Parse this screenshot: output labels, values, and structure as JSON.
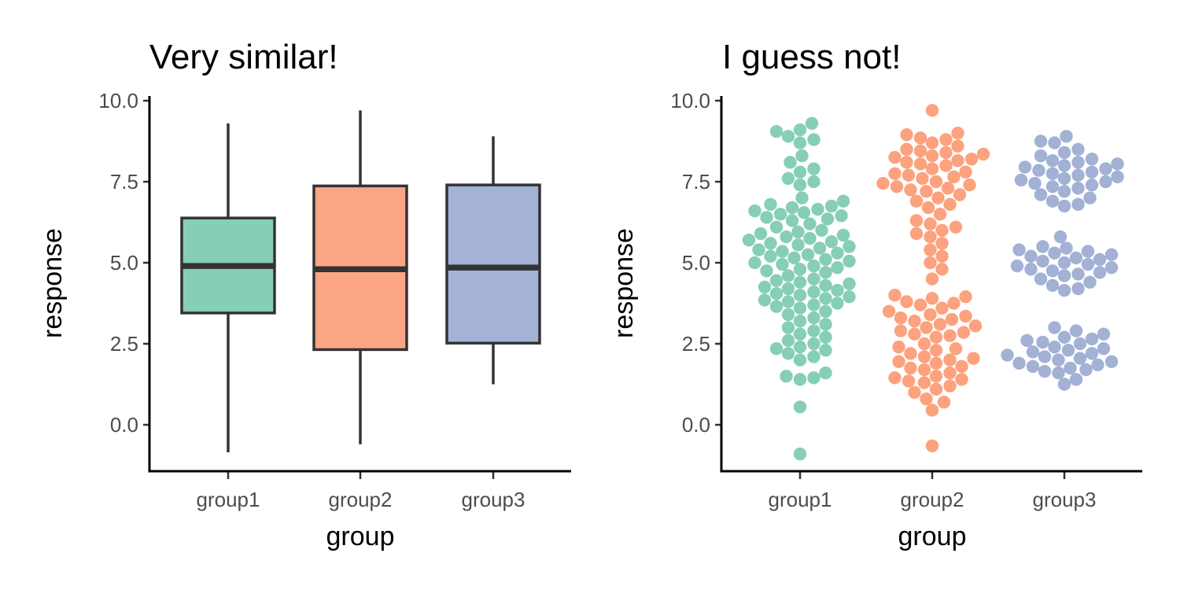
{
  "chart_data": [
    {
      "type": "boxplot",
      "title": "Very similar!",
      "xlabel": "group",
      "ylabel": "response",
      "categories": [
        "group1",
        "group2",
        "group3"
      ],
      "ylim": [
        -1.4,
        10.2
      ],
      "yticks": [
        0.0,
        2.5,
        5.0,
        7.5,
        10.0
      ],
      "ytick_labels": [
        "0.0",
        "2.5",
        "5.0",
        "7.5",
        "10.0"
      ],
      "grid": false,
      "legend": "none",
      "colors": [
        "#86CFB6",
        "#FCA584",
        "#A3B2D6"
      ],
      "edge_color": "#333333",
      "boxes": [
        {
          "group": "group1",
          "min": -0.85,
          "q1": 3.45,
          "median": 4.9,
          "q3": 6.38,
          "max": 9.3
        },
        {
          "group": "group2",
          "min": -0.6,
          "q1": 2.32,
          "median": 4.8,
          "q3": 7.37,
          "max": 9.7
        },
        {
          "group": "group3",
          "min": 1.25,
          "q1": 2.52,
          "median": 4.85,
          "q3": 7.4,
          "max": 8.9
        }
      ]
    },
    {
      "type": "scatter",
      "title": "I guess not!",
      "xlabel": "group",
      "ylabel": "response",
      "categories": [
        "group1",
        "group2",
        "group3"
      ],
      "ylim": [
        -1.4,
        10.2
      ],
      "yticks": [
        0.0,
        2.5,
        5.0,
        7.5,
        10.0
      ],
      "ytick_labels": [
        "0.0",
        "2.5",
        "5.0",
        "7.5",
        "10.0"
      ],
      "grid": false,
      "legend": "none",
      "colors": [
        "#6CC4A3",
        "#FB8D62",
        "#8DA0CB"
      ],
      "groups": [
        {
          "name": "group1",
          "values": [
            9.3,
            9.1,
            9.05,
            8.9,
            8.8,
            8.7,
            8.3,
            8.1,
            7.9,
            7.8,
            7.6,
            7.5,
            7.4,
            7.0,
            6.9,
            6.8,
            6.75,
            6.7,
            6.65,
            6.6,
            6.55,
            6.5,
            6.45,
            6.4,
            6.35,
            6.3,
            6.2,
            6.1,
            6.0,
            5.95,
            5.9,
            5.85,
            5.8,
            5.75,
            5.7,
            5.65,
            5.6,
            5.55,
            5.5,
            5.45,
            5.4,
            5.35,
            5.3,
            5.25,
            5.2,
            5.15,
            5.1,
            5.05,
            5.0,
            4.95,
            4.9,
            4.85,
            4.8,
            4.75,
            4.7,
            4.6,
            4.5,
            4.45,
            4.4,
            4.35,
            4.3,
            4.25,
            4.2,
            4.15,
            4.1,
            4.05,
            4.0,
            3.95,
            3.9,
            3.85,
            3.8,
            3.75,
            3.7,
            3.65,
            3.6,
            3.5,
            3.4,
            3.3,
            3.2,
            3.1,
            3.0,
            2.9,
            2.8,
            2.7,
            2.6,
            2.5,
            2.4,
            2.35,
            2.3,
            2.2,
            2.1,
            2.0,
            1.6,
            1.5,
            1.45,
            1.4,
            0.55,
            -0.9
          ]
        },
        {
          "name": "group2",
          "values": [
            9.7,
            9.0,
            8.95,
            8.85,
            8.8,
            8.7,
            8.6,
            8.5,
            8.45,
            8.4,
            8.35,
            8.3,
            8.25,
            8.2,
            8.15,
            8.1,
            8.05,
            8.0,
            7.9,
            7.8,
            7.75,
            7.7,
            7.65,
            7.6,
            7.5,
            7.45,
            7.4,
            7.35,
            7.3,
            7.25,
            7.2,
            7.1,
            7.0,
            6.9,
            6.8,
            6.7,
            6.5,
            6.3,
            6.2,
            6.1,
            6.0,
            5.9,
            5.8,
            5.6,
            5.4,
            5.2,
            5.0,
            4.8,
            4.5,
            4.0,
            3.95,
            3.9,
            3.8,
            3.75,
            3.7,
            3.6,
            3.5,
            3.4,
            3.35,
            3.3,
            3.25,
            3.2,
            3.1,
            3.05,
            3.0,
            2.9,
            2.85,
            2.8,
            2.75,
            2.7,
            2.5,
            2.4,
            2.35,
            2.3,
            2.2,
            2.1,
            2.05,
            2.0,
            1.95,
            1.9,
            1.8,
            1.75,
            1.7,
            1.6,
            1.5,
            1.45,
            1.4,
            1.35,
            1.3,
            1.2,
            1.1,
            1.0,
            0.8,
            0.7,
            0.45,
            -0.65
          ]
        },
        {
          "name": "group3",
          "values": [
            8.9,
            8.75,
            8.7,
            8.5,
            8.4,
            8.3,
            8.2,
            8.15,
            8.1,
            8.05,
            8.0,
            7.95,
            7.9,
            7.85,
            7.8,
            7.75,
            7.7,
            7.65,
            7.6,
            7.55,
            7.5,
            7.45,
            7.4,
            7.35,
            7.3,
            7.2,
            7.1,
            7.0,
            6.9,
            6.8,
            6.75,
            5.8,
            5.5,
            5.45,
            5.4,
            5.35,
            5.3,
            5.25,
            5.2,
            5.15,
            5.1,
            5.05,
            5.0,
            4.95,
            4.9,
            4.85,
            4.8,
            4.75,
            4.7,
            4.65,
            4.6,
            4.5,
            4.4,
            4.3,
            4.2,
            4.15,
            3.0,
            2.9,
            2.8,
            2.7,
            2.65,
            2.6,
            2.55,
            2.5,
            2.4,
            2.35,
            2.3,
            2.25,
            2.2,
            2.15,
            2.1,
            2.05,
            2.0,
            1.95,
            1.9,
            1.85,
            1.8,
            1.75,
            1.7,
            1.65,
            1.6,
            1.4,
            1.25
          ]
        }
      ]
    }
  ]
}
